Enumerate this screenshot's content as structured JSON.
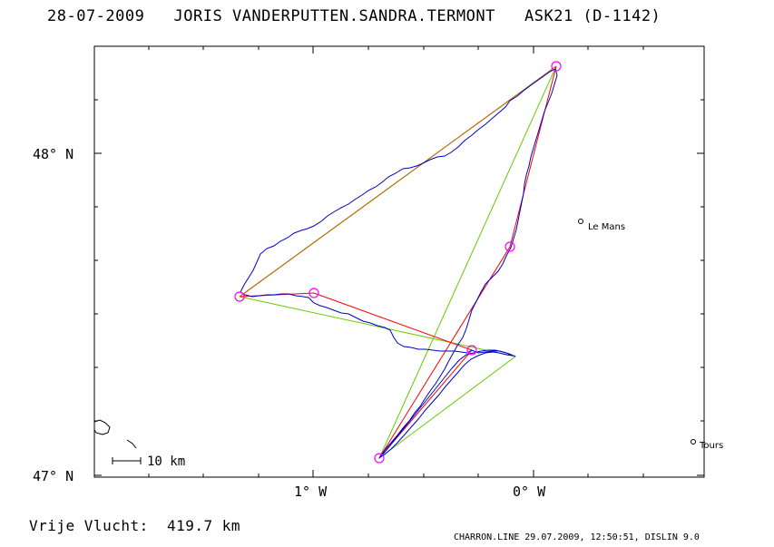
{
  "header": {
    "title": "28-07-2009   JORIS VANDERPUTTEN.SANDRA.TERMONT   ASK21 (D-1142)"
  },
  "footer": {
    "distance_text": "Vrije Vlucht:  419.7 km",
    "credit_text": "CHARRON.LINE 29.07.2009, 12:50:51, DISLIN 9.0"
  },
  "axes": {
    "lat_labels": [
      "48° N",
      "47° N"
    ],
    "lon_labels": [
      "1° W",
      "0° W"
    ]
  },
  "places": [
    {
      "name": "Le Mans"
    },
    {
      "name": "Tours"
    }
  ],
  "scale_bar": {
    "label": "10 km"
  },
  "colors": {
    "track": "#0000cc",
    "task": "#ff0000",
    "triangle": "#66cc00",
    "leg": "#b36b00",
    "turnpoint": "#ff00ff"
  }
}
